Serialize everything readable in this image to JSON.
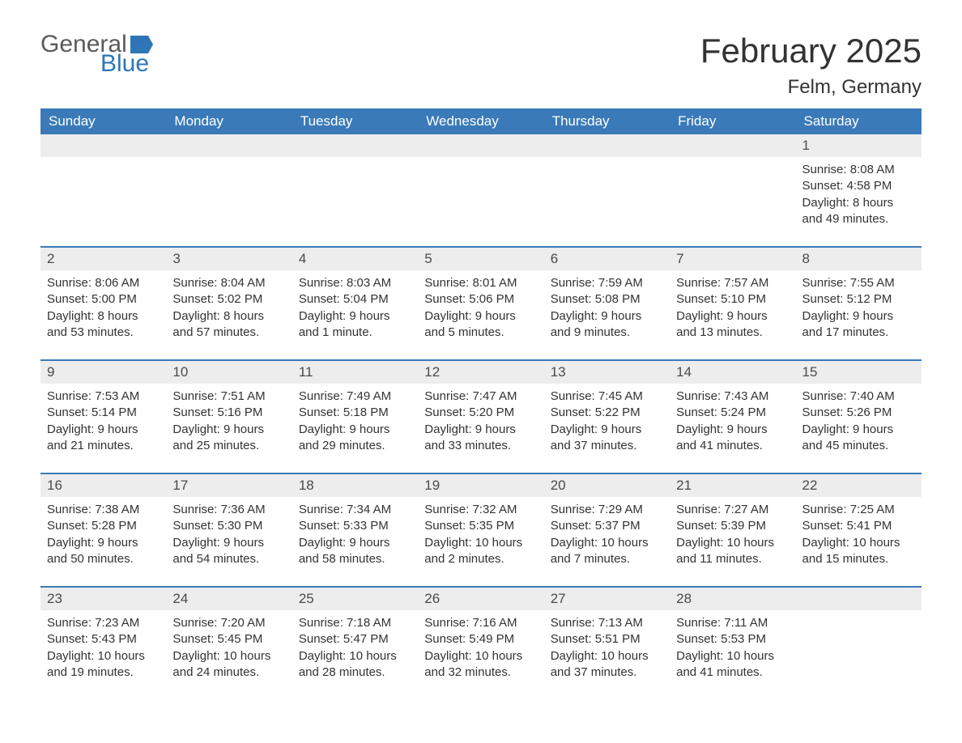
{
  "brand": {
    "word1": "General",
    "word2": "Blue",
    "word1_color": "#5a5a5a",
    "word2_color": "#2e76b6",
    "flag_color": "#2e76b6"
  },
  "title": "February 2025",
  "location": "Felm, Germany",
  "colors": {
    "header_bg": "#3a7ab8",
    "header_text": "#ffffff",
    "daynum_bg": "#ededed",
    "daynum_text": "#4a4a4a",
    "body_text": "#333333",
    "row_border": "#3a7ab8",
    "page_bg": "#ffffff"
  },
  "fonts": {
    "title_size": 42,
    "location_size": 24,
    "weekday_size": 17,
    "daynum_size": 17,
    "body_size": 15
  },
  "weekdays": [
    "Sunday",
    "Monday",
    "Tuesday",
    "Wednesday",
    "Thursday",
    "Friday",
    "Saturday"
  ],
  "weeks": [
    [
      {
        "day": "",
        "sunrise": "",
        "sunset": "",
        "daylight": ""
      },
      {
        "day": "",
        "sunrise": "",
        "sunset": "",
        "daylight": ""
      },
      {
        "day": "",
        "sunrise": "",
        "sunset": "",
        "daylight": ""
      },
      {
        "day": "",
        "sunrise": "",
        "sunset": "",
        "daylight": ""
      },
      {
        "day": "",
        "sunrise": "",
        "sunset": "",
        "daylight": ""
      },
      {
        "day": "",
        "sunrise": "",
        "sunset": "",
        "daylight": ""
      },
      {
        "day": "1",
        "sunrise": "Sunrise: 8:08 AM",
        "sunset": "Sunset: 4:58 PM",
        "daylight": "Daylight: 8 hours and 49 minutes."
      }
    ],
    [
      {
        "day": "2",
        "sunrise": "Sunrise: 8:06 AM",
        "sunset": "Sunset: 5:00 PM",
        "daylight": "Daylight: 8 hours and 53 minutes."
      },
      {
        "day": "3",
        "sunrise": "Sunrise: 8:04 AM",
        "sunset": "Sunset: 5:02 PM",
        "daylight": "Daylight: 8 hours and 57 minutes."
      },
      {
        "day": "4",
        "sunrise": "Sunrise: 8:03 AM",
        "sunset": "Sunset: 5:04 PM",
        "daylight": "Daylight: 9 hours and 1 minute."
      },
      {
        "day": "5",
        "sunrise": "Sunrise: 8:01 AM",
        "sunset": "Sunset: 5:06 PM",
        "daylight": "Daylight: 9 hours and 5 minutes."
      },
      {
        "day": "6",
        "sunrise": "Sunrise: 7:59 AM",
        "sunset": "Sunset: 5:08 PM",
        "daylight": "Daylight: 9 hours and 9 minutes."
      },
      {
        "day": "7",
        "sunrise": "Sunrise: 7:57 AM",
        "sunset": "Sunset: 5:10 PM",
        "daylight": "Daylight: 9 hours and 13 minutes."
      },
      {
        "day": "8",
        "sunrise": "Sunrise: 7:55 AM",
        "sunset": "Sunset: 5:12 PM",
        "daylight": "Daylight: 9 hours and 17 minutes."
      }
    ],
    [
      {
        "day": "9",
        "sunrise": "Sunrise: 7:53 AM",
        "sunset": "Sunset: 5:14 PM",
        "daylight": "Daylight: 9 hours and 21 minutes."
      },
      {
        "day": "10",
        "sunrise": "Sunrise: 7:51 AM",
        "sunset": "Sunset: 5:16 PM",
        "daylight": "Daylight: 9 hours and 25 minutes."
      },
      {
        "day": "11",
        "sunrise": "Sunrise: 7:49 AM",
        "sunset": "Sunset: 5:18 PM",
        "daylight": "Daylight: 9 hours and 29 minutes."
      },
      {
        "day": "12",
        "sunrise": "Sunrise: 7:47 AM",
        "sunset": "Sunset: 5:20 PM",
        "daylight": "Daylight: 9 hours and 33 minutes."
      },
      {
        "day": "13",
        "sunrise": "Sunrise: 7:45 AM",
        "sunset": "Sunset: 5:22 PM",
        "daylight": "Daylight: 9 hours and 37 minutes."
      },
      {
        "day": "14",
        "sunrise": "Sunrise: 7:43 AM",
        "sunset": "Sunset: 5:24 PM",
        "daylight": "Daylight: 9 hours and 41 minutes."
      },
      {
        "day": "15",
        "sunrise": "Sunrise: 7:40 AM",
        "sunset": "Sunset: 5:26 PM",
        "daylight": "Daylight: 9 hours and 45 minutes."
      }
    ],
    [
      {
        "day": "16",
        "sunrise": "Sunrise: 7:38 AM",
        "sunset": "Sunset: 5:28 PM",
        "daylight": "Daylight: 9 hours and 50 minutes."
      },
      {
        "day": "17",
        "sunrise": "Sunrise: 7:36 AM",
        "sunset": "Sunset: 5:30 PM",
        "daylight": "Daylight: 9 hours and 54 minutes."
      },
      {
        "day": "18",
        "sunrise": "Sunrise: 7:34 AM",
        "sunset": "Sunset: 5:33 PM",
        "daylight": "Daylight: 9 hours and 58 minutes."
      },
      {
        "day": "19",
        "sunrise": "Sunrise: 7:32 AM",
        "sunset": "Sunset: 5:35 PM",
        "daylight": "Daylight: 10 hours and 2 minutes."
      },
      {
        "day": "20",
        "sunrise": "Sunrise: 7:29 AM",
        "sunset": "Sunset: 5:37 PM",
        "daylight": "Daylight: 10 hours and 7 minutes."
      },
      {
        "day": "21",
        "sunrise": "Sunrise: 7:27 AM",
        "sunset": "Sunset: 5:39 PM",
        "daylight": "Daylight: 10 hours and 11 minutes."
      },
      {
        "day": "22",
        "sunrise": "Sunrise: 7:25 AM",
        "sunset": "Sunset: 5:41 PM",
        "daylight": "Daylight: 10 hours and 15 minutes."
      }
    ],
    [
      {
        "day": "23",
        "sunrise": "Sunrise: 7:23 AM",
        "sunset": "Sunset: 5:43 PM",
        "daylight": "Daylight: 10 hours and 19 minutes."
      },
      {
        "day": "24",
        "sunrise": "Sunrise: 7:20 AM",
        "sunset": "Sunset: 5:45 PM",
        "daylight": "Daylight: 10 hours and 24 minutes."
      },
      {
        "day": "25",
        "sunrise": "Sunrise: 7:18 AM",
        "sunset": "Sunset: 5:47 PM",
        "daylight": "Daylight: 10 hours and 28 minutes."
      },
      {
        "day": "26",
        "sunrise": "Sunrise: 7:16 AM",
        "sunset": "Sunset: 5:49 PM",
        "daylight": "Daylight: 10 hours and 32 minutes."
      },
      {
        "day": "27",
        "sunrise": "Sunrise: 7:13 AM",
        "sunset": "Sunset: 5:51 PM",
        "daylight": "Daylight: 10 hours and 37 minutes."
      },
      {
        "day": "28",
        "sunrise": "Sunrise: 7:11 AM",
        "sunset": "Sunset: 5:53 PM",
        "daylight": "Daylight: 10 hours and 41 minutes."
      },
      {
        "day": "",
        "sunrise": "",
        "sunset": "",
        "daylight": ""
      }
    ]
  ]
}
